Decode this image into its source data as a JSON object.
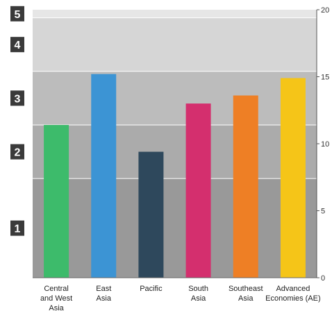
{
  "chart_data": {
    "type": "bar",
    "categories": [
      [
        "Central",
        "and West",
        "Asia"
      ],
      [
        "East",
        "Asia"
      ],
      [
        "Pacific"
      ],
      [
        "South",
        "Asia"
      ],
      [
        "Southeast",
        "Asia"
      ],
      [
        "Advanced",
        "Economies (AE)"
      ]
    ],
    "values": [
      11.4,
      15.2,
      9.4,
      13.0,
      13.6,
      14.9
    ],
    "bar_colors": [
      "#3dbb6b",
      "#3c94d4",
      "#2e485c",
      "#d42f6e",
      "#ee7f25",
      "#f5c518"
    ],
    "ylim": [
      0,
      20
    ],
    "y_ticks": [
      0,
      5,
      10,
      15,
      20
    ],
    "y_axis_side": "right",
    "levels": [
      {
        "label": "1",
        "from": 0,
        "to": 7.4,
        "color": "#999999"
      },
      {
        "label": "2",
        "from": 7.4,
        "to": 11.4,
        "color": "#ababab"
      },
      {
        "label": "3",
        "from": 11.4,
        "to": 15.4,
        "color": "#bcbcbc"
      },
      {
        "label": "4",
        "from": 15.4,
        "to": 19.4,
        "color": "#d6d6d6"
      },
      {
        "label": "5",
        "from": 19.4,
        "to": 20,
        "color": "#e6e6e6"
      }
    ],
    "level_badge_color": "#3a3a3a",
    "grid": false
  }
}
